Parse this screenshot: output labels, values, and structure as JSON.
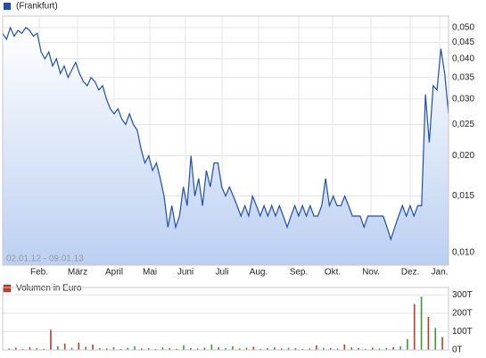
{
  "chart_data": [
    {
      "type": "line",
      "legend": "(Frankfurt)",
      "color": "#1f4fae",
      "log_scale": true,
      "grid": true,
      "date_range": "02.01.12 - 09.01.13",
      "xtick_labels": [
        "Feb.",
        "März",
        "April",
        "Mai",
        "Juni",
        "Juli",
        "Aug.",
        "Sep.",
        "Okt.",
        "Nov.",
        "Dez.",
        "Jan."
      ],
      "ylim": [
        0.00915,
        0.0543
      ],
      "yticks": [
        {
          "value": 0.05,
          "label": "0,050"
        },
        {
          "value": 0.045,
          "label": "0,045"
        },
        {
          "value": 0.04,
          "label": "0,040"
        },
        {
          "value": 0.035,
          "label": "0,035"
        },
        {
          "value": 0.03,
          "label": "0,030"
        },
        {
          "value": 0.025,
          "label": "0,025"
        },
        {
          "value": 0.02,
          "label": "0,020"
        },
        {
          "value": 0.015,
          "label": "0,015"
        },
        {
          "value": 0.01,
          "label": "0,010"
        }
      ],
      "values": [
        0.048,
        0.046,
        0.05,
        0.047,
        0.049,
        0.048,
        0.05,
        0.049,
        0.047,
        0.048,
        0.042,
        0.04,
        0.042,
        0.038,
        0.04,
        0.036,
        0.038,
        0.035,
        0.037,
        0.039,
        0.036,
        0.034,
        0.033,
        0.035,
        0.034,
        0.032,
        0.033,
        0.03,
        0.028,
        0.027,
        0.028,
        0.026,
        0.025,
        0.027,
        0.025,
        0.024,
        0.021,
        0.019,
        0.02,
        0.018,
        0.019,
        0.017,
        0.015,
        0.012,
        0.014,
        0.012,
        0.013,
        0.016,
        0.014,
        0.02,
        0.015,
        0.017,
        0.014,
        0.018,
        0.016,
        0.019,
        0.019,
        0.016,
        0.015,
        0.016,
        0.015,
        0.014,
        0.013,
        0.014,
        0.013,
        0.015,
        0.014,
        0.013,
        0.014,
        0.013,
        0.014,
        0.013,
        0.014,
        0.013,
        0.012,
        0.013,
        0.014,
        0.013,
        0.014,
        0.013,
        0.014,
        0.013,
        0.013,
        0.014,
        0.017,
        0.014,
        0.015,
        0.014,
        0.014,
        0.015,
        0.014,
        0.013,
        0.013,
        0.013,
        0.012,
        0.013,
        0.013,
        0.013,
        0.013,
        0.013,
        0.012,
        0.011,
        0.012,
        0.013,
        0.014,
        0.013,
        0.014,
        0.013,
        0.014,
        0.014,
        0.031,
        0.022,
        0.033,
        0.032,
        0.043,
        0.036,
        0.027
      ]
    },
    {
      "type": "bar",
      "legend": "Volumen in Euro",
      "legend_color": "#c0392b",
      "ylim": [
        0,
        340
      ],
      "yticks": [
        {
          "value": 300,
          "label": "300T"
        },
        {
          "value": 200,
          "label": "200T"
        },
        {
          "value": 100,
          "label": "100T"
        },
        {
          "value": 0,
          "label": "0T"
        }
      ],
      "values": [
        8,
        12,
        5,
        15,
        10,
        6,
        110,
        20,
        35,
        12,
        40,
        18,
        30,
        10,
        8,
        15,
        6,
        12,
        20,
        8,
        10,
        5,
        14,
        9,
        6,
        25,
        10,
        8,
        12,
        30,
        15,
        10,
        20,
        8,
        12,
        18,
        6,
        10,
        15,
        8,
        12,
        10,
        5,
        8,
        25,
        12,
        10,
        8,
        30,
        15,
        10,
        6,
        12,
        8,
        10,
        15,
        20,
        60,
        250,
        290,
        180,
        120,
        70
      ],
      "bar_colors": [
        "#3a9a3a",
        "#c0392b",
        "#3a9a3a",
        "#c0392b",
        "#3a9a3a",
        "#3a9a3a",
        "#c0392b",
        "#3a9a3a",
        "#c0392b",
        "#3a9a3a",
        "#c0392b",
        "#3a9a3a",
        "#c0392b",
        "#3a9a3a",
        "#c0392b",
        "#3a9a3a",
        "#c0392b",
        "#3a9a3a",
        "#3a9a3a",
        "#c0392b",
        "#3a9a3a",
        "#c0392b",
        "#3a9a3a",
        "#c0392b",
        "#3a9a3a",
        "#3a9a3a",
        "#c0392b",
        "#3a9a3a",
        "#c0392b",
        "#3a9a3a",
        "#c0392b",
        "#3a9a3a",
        "#3a9a3a",
        "#c0392b",
        "#3a9a3a",
        "#c0392b",
        "#3a9a3a",
        "#c0392b",
        "#3a9a3a",
        "#c0392b",
        "#3a9a3a",
        "#c0392b",
        "#3a9a3a",
        "#3a9a3a",
        "#c0392b",
        "#3a9a3a",
        "#c0392b",
        "#3a9a3a",
        "#c0392b",
        "#3a9a3a",
        "#c0392b",
        "#3a9a3a",
        "#c0392b",
        "#3a9a3a",
        "#3a9a3a",
        "#c0392b",
        "#3a9a3a",
        "#3a9a3a",
        "#c0392b",
        "#3a9a3a",
        "#c0392b",
        "#3a9a3a",
        "#c0392b"
      ]
    }
  ]
}
